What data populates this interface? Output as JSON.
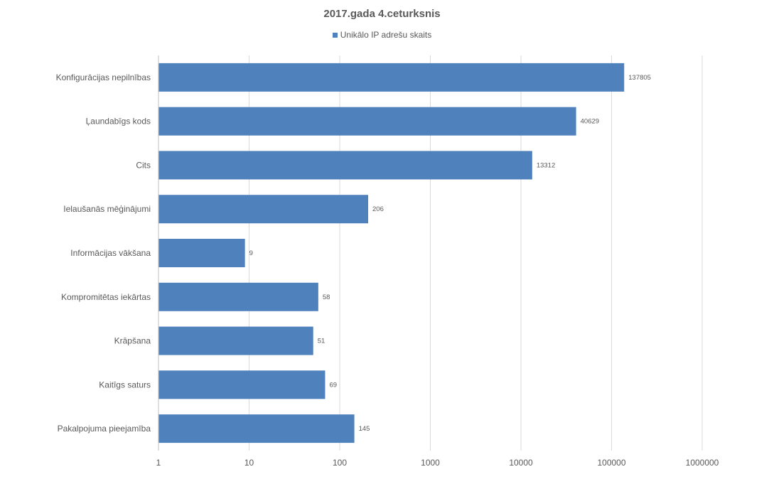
{
  "chart_data": {
    "type": "bar",
    "orientation": "horizontal",
    "title": "2017.gada 4.ceturksnis",
    "legend_position": "top",
    "x_scale": "log",
    "xlim": [
      1,
      1000000
    ],
    "x_ticks": [
      "1",
      "10",
      "100",
      "1000",
      "10000",
      "100000",
      "1000000"
    ],
    "grid": true,
    "categories": [
      "Konfigurācijas nepilnības",
      "Ļaundabīgs kods",
      "Cits",
      "Ielaušanās mēģinājumi",
      "Informācijas vākšana",
      "Kompromitētas iekārtas",
      "Krāpšana",
      "Kaitīgs saturs",
      "Pakalpojuma pieejamība"
    ],
    "series": [
      {
        "name": "Unikālo IP adrešu skaits",
        "color": "#4f81bd",
        "values": [
          137805,
          40629,
          13312,
          206,
          9,
          58,
          51,
          69,
          145
        ]
      }
    ]
  }
}
